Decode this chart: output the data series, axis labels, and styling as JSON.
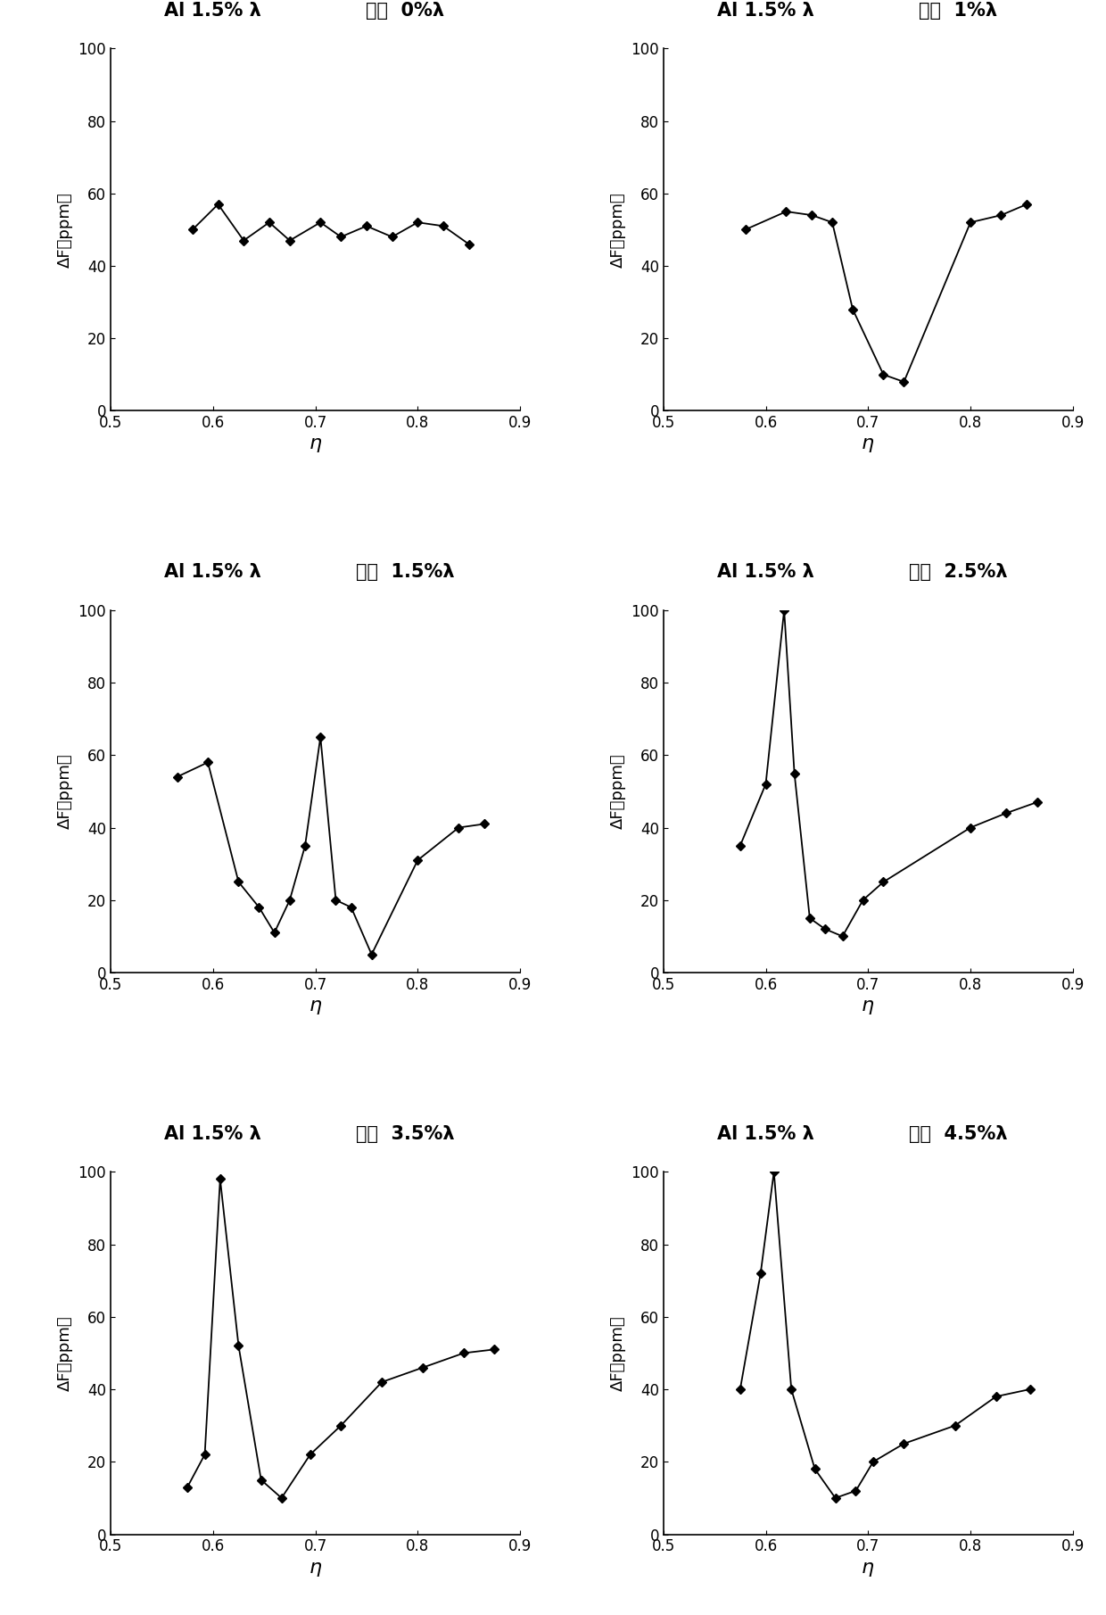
{
  "plots": [
    {
      "title_left": "Al 1.5% λ",
      "title_right": "槽深  0%λ",
      "x": [
        0.58,
        0.605,
        0.63,
        0.655,
        0.675,
        0.705,
        0.725,
        0.75,
        0.775,
        0.8,
        0.825,
        0.85
      ],
      "y": [
        50,
        57,
        47,
        52,
        47,
        52,
        48,
        51,
        48,
        52,
        51,
        46
      ],
      "xlim": [
        0.5,
        0.9
      ],
      "ylim": [
        0,
        100
      ],
      "yticks": [
        0,
        20,
        40,
        60,
        80,
        100
      ],
      "xticks": [
        0.5,
        0.6,
        0.7,
        0.8,
        0.9
      ]
    },
    {
      "title_left": "Al 1.5% λ",
      "title_right": "槽深  1%λ",
      "x": [
        0.58,
        0.62,
        0.645,
        0.665,
        0.685,
        0.715,
        0.735,
        0.8,
        0.83,
        0.855
      ],
      "y": [
        50,
        55,
        54,
        52,
        28,
        10,
        8,
        52,
        54,
        57
      ],
      "xlim": [
        0.5,
        0.9
      ],
      "ylim": [
        0,
        100
      ],
      "yticks": [
        0,
        20,
        40,
        60,
        80,
        100
      ],
      "xticks": [
        0.5,
        0.6,
        0.7,
        0.8,
        0.9
      ]
    },
    {
      "title_left": "Al 1.5% λ",
      "title_right": "槽深  1.5%λ",
      "x": [
        0.565,
        0.595,
        0.625,
        0.645,
        0.66,
        0.675,
        0.69,
        0.705,
        0.72,
        0.735,
        0.755,
        0.8,
        0.84,
        0.865
      ],
      "y": [
        54,
        58,
        25,
        18,
        11,
        20,
        35,
        65,
        20,
        18,
        5,
        31,
        40,
        41
      ],
      "xlim": [
        0.5,
        0.9
      ],
      "ylim": [
        0,
        100
      ],
      "yticks": [
        0,
        20,
        40,
        60,
        80,
        100
      ],
      "xticks": [
        0.5,
        0.6,
        0.7,
        0.8,
        0.9
      ]
    },
    {
      "title_left": "Al 1.5% λ",
      "title_right": "槽深  2.5%λ",
      "x": [
        0.575,
        0.6,
        0.618,
        0.628,
        0.643,
        0.658,
        0.675,
        0.695,
        0.715,
        0.8,
        0.835,
        0.865
      ],
      "y": [
        35,
        52,
        100,
        55,
        15,
        12,
        10,
        20,
        25,
        40,
        44,
        47
      ],
      "xlim": [
        0.5,
        0.9
      ],
      "ylim": [
        0,
        100
      ],
      "yticks": [
        0,
        20,
        40,
        60,
        80,
        100
      ],
      "xticks": [
        0.5,
        0.6,
        0.7,
        0.8,
        0.9
      ]
    },
    {
      "title_left": "Al 1.5% λ",
      "title_right": "槽深  3.5%λ",
      "x": [
        0.575,
        0.592,
        0.607,
        0.625,
        0.647,
        0.667,
        0.695,
        0.725,
        0.765,
        0.805,
        0.845,
        0.875
      ],
      "y": [
        13,
        22,
        98,
        52,
        15,
        10,
        22,
        30,
        42,
        46,
        50,
        51
      ],
      "xlim": [
        0.5,
        0.9
      ],
      "ylim": [
        0,
        100
      ],
      "yticks": [
        0,
        20,
        40,
        60,
        80,
        100
      ],
      "xticks": [
        0.5,
        0.6,
        0.7,
        0.8,
        0.9
      ]
    },
    {
      "title_left": "Al 1.5% λ",
      "title_right": "槽深  4.5%λ",
      "x": [
        0.575,
        0.595,
        0.608,
        0.625,
        0.648,
        0.668,
        0.688,
        0.705,
        0.735,
        0.785,
        0.825,
        0.858
      ],
      "y": [
        40,
        72,
        100,
        40,
        18,
        10,
        12,
        20,
        25,
        30,
        38,
        40
      ],
      "xlim": [
        0.5,
        0.9
      ],
      "ylim": [
        0,
        100
      ],
      "yticks": [
        0,
        20,
        40,
        60,
        80,
        100
      ],
      "xticks": [
        0.5,
        0.6,
        0.7,
        0.8,
        0.9
      ]
    }
  ],
  "xlabel": "η",
  "ylabel_top": "ΔF",
  "ylabel_bottom": "(ppm)",
  "marker": "D",
  "markersize": 5,
  "linewidth": 1.3,
  "color": "black",
  "title_fontsize": 15,
  "label_fontsize": 13,
  "tick_fontsize": 12
}
